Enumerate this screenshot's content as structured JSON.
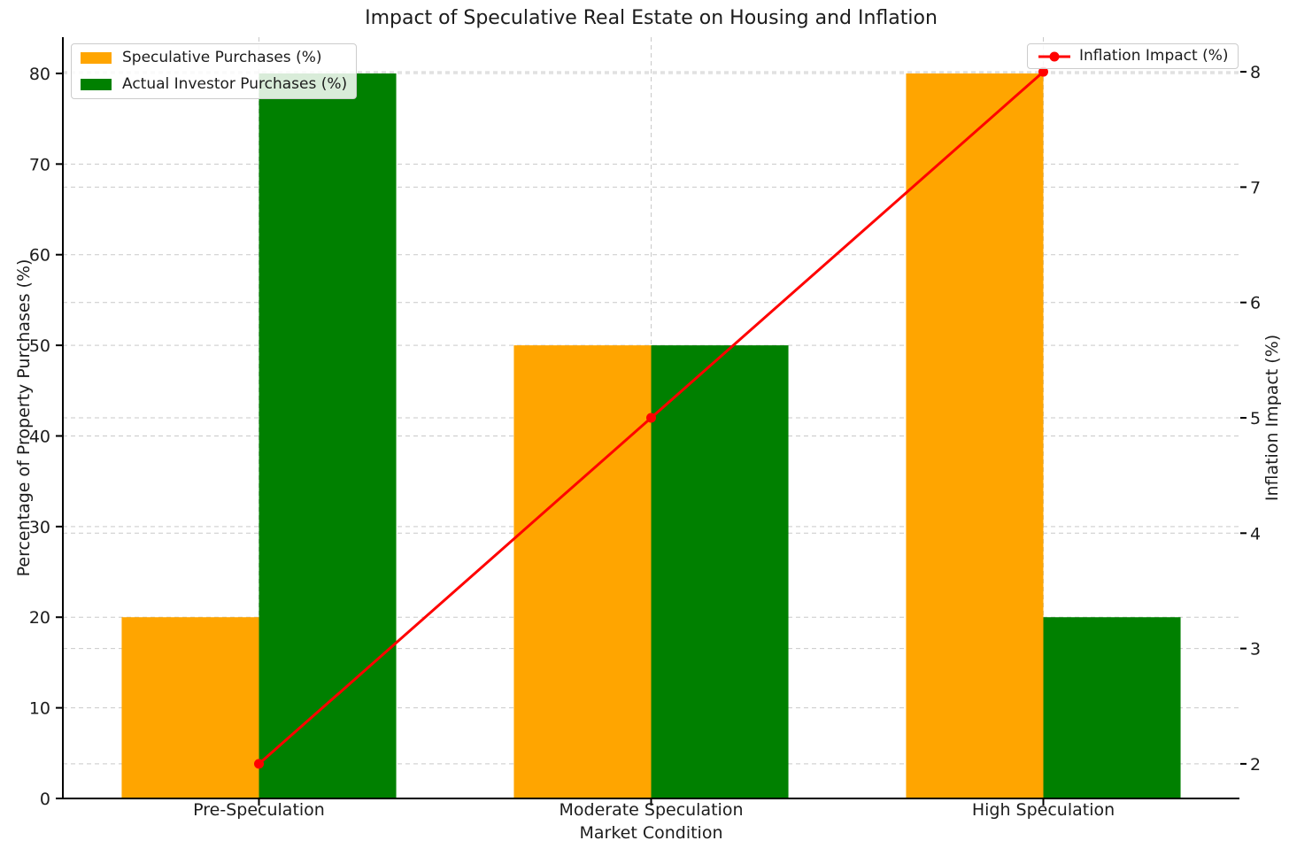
{
  "chart_data": {
    "type": "bar",
    "subtype": "grouped-bars-with-secondary-axis-line",
    "title": "Impact of Speculative Real Estate on Housing and Inflation",
    "xlabel": "Market Condition",
    "categories": [
      "Pre-Speculation",
      "Moderate Speculation",
      "High Speculation"
    ],
    "series": [
      {
        "name": "Speculative Purchases (%)",
        "kind": "bar",
        "axis": "left",
        "color": "#FFA500",
        "values": [
          20,
          50,
          80
        ]
      },
      {
        "name": "Actual Investor Purchases (%)",
        "kind": "bar",
        "axis": "left",
        "color": "#008000",
        "values": [
          80,
          50,
          20
        ]
      },
      {
        "name": "Inflation Impact (%)",
        "kind": "line",
        "axis": "right",
        "color": "#FF0000",
        "values": [
          2,
          5,
          8
        ]
      }
    ],
    "axes": {
      "left": {
        "label": "Percentage of Property Purchases (%)",
        "ticks": [
          0,
          10,
          20,
          30,
          40,
          50,
          60,
          70,
          80
        ],
        "range": [
          0,
          84
        ]
      },
      "right": {
        "label": "Inflation Impact (%)",
        "ticks": [
          2,
          3,
          4,
          5,
          6,
          7,
          8
        ],
        "range": [
          1.7,
          8.3
        ]
      },
      "x": {
        "range": [
          -0.5,
          2.5
        ]
      }
    },
    "bar_width": 0.35,
    "grid": {
      "visible": true,
      "style": "dashed",
      "color": "#c9c9c9"
    },
    "legend_positions": {
      "bars": "upper-left",
      "line": "upper-right"
    },
    "style": {
      "spine_color": "#000000",
      "text_color": "#1c1c1c",
      "background": "#ffffff",
      "line_width": 3,
      "marker_radius": 5.5
    }
  }
}
